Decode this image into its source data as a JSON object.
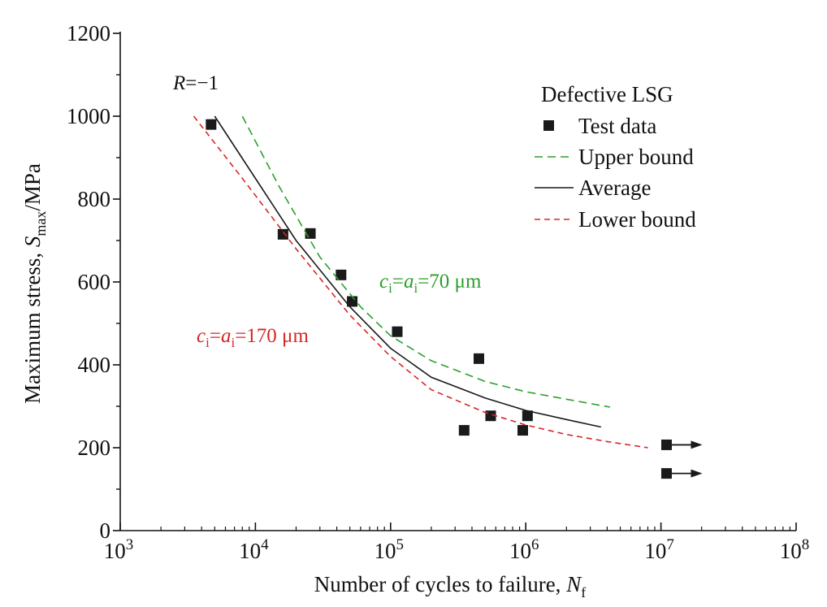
{
  "chart_data": {
    "type": "scatter",
    "xscale": "log",
    "xlim": [
      1000,
      100000000
    ],
    "ylim": [
      0,
      1200
    ],
    "x_ticks": [
      1000,
      10000,
      100000,
      1000000,
      10000000,
      100000000
    ],
    "x_tick_labels": [
      {
        "base": "10",
        "exp": "3"
      },
      {
        "base": "10",
        "exp": "4"
      },
      {
        "base": "10",
        "exp": "5"
      },
      {
        "base": "10",
        "exp": "6"
      },
      {
        "base": "10",
        "exp": "7"
      },
      {
        "base": "10",
        "exp": "8"
      }
    ],
    "y_ticks": [
      0,
      200,
      400,
      600,
      800,
      1000,
      1200
    ],
    "y_tick_labels": [
      "0",
      "200",
      "400",
      "600",
      "800",
      "1000",
      "1200"
    ],
    "xlabel": {
      "text": "Number of cycles to failure, ",
      "var": "N",
      "sub": "f"
    },
    "ylabel": {
      "prefix": "Maximum stress, ",
      "var": "S",
      "sub": "max",
      "suffix": "/MPa"
    },
    "annotations": {
      "ratio": {
        "var": "R",
        "text": "=−1"
      },
      "upper": {
        "c": "c",
        "ci": "i",
        "eq1": "=",
        "a": "a",
        "ai": "i",
        "eq2": "=70 μm",
        "color": "#2ca02c"
      },
      "lower": {
        "c": "c",
        "ci": "i",
        "eq1": "=",
        "a": "a",
        "ai": "i",
        "eq2": "=170 μm",
        "color": "#d62728"
      }
    },
    "legend": {
      "title": "Defective LSG",
      "position": "top-right",
      "entries": [
        "Test data",
        "Upper bound",
        "Average",
        "Lower bound"
      ]
    },
    "series": [
      {
        "name": "Test data",
        "kind": "scatter",
        "color": "#1a1a1a",
        "points": [
          [
            4700,
            980
          ],
          [
            16000,
            715
          ],
          [
            25500,
            717
          ],
          [
            43000,
            617
          ],
          [
            52000,
            553
          ],
          [
            112000,
            480
          ],
          [
            350000,
            242
          ],
          [
            450000,
            415
          ],
          [
            550000,
            277
          ],
          [
            950000,
            242
          ],
          [
            1030000,
            277
          ]
        ]
      },
      {
        "name": "Test data (runout)",
        "kind": "runout",
        "color": "#1a1a1a",
        "points": [
          [
            11000000,
            207
          ],
          [
            11000000,
            138
          ]
        ]
      },
      {
        "name": "Upper bound",
        "kind": "line",
        "style": "dashed",
        "color": "#2ca02c",
        "points": [
          [
            8000,
            1000
          ],
          [
            15000,
            830
          ],
          [
            30000,
            660
          ],
          [
            60000,
            540
          ],
          [
            100000,
            470
          ],
          [
            200000,
            410
          ],
          [
            500000,
            360
          ],
          [
            1000000,
            335
          ],
          [
            2000000,
            317
          ],
          [
            4200000,
            298
          ]
        ]
      },
      {
        "name": "Average",
        "kind": "line",
        "style": "solid",
        "color": "#1a1a1a",
        "points": [
          [
            5000,
            1000
          ],
          [
            10000,
            850
          ],
          [
            20000,
            700
          ],
          [
            50000,
            540
          ],
          [
            100000,
            440
          ],
          [
            200000,
            370
          ],
          [
            500000,
            320
          ],
          [
            1000000,
            290
          ],
          [
            2000000,
            268
          ],
          [
            3600000,
            250
          ]
        ]
      },
      {
        "name": "Lower bound",
        "kind": "line",
        "style": "dotted",
        "color": "#d62728",
        "points": [
          [
            3500,
            1000
          ],
          [
            8000,
            850
          ],
          [
            20000,
            680
          ],
          [
            50000,
            520
          ],
          [
            100000,
            420
          ],
          [
            200000,
            340
          ],
          [
            500000,
            285
          ],
          [
            1000000,
            255
          ],
          [
            2000000,
            232
          ],
          [
            4000000,
            215
          ],
          [
            8000000,
            200
          ]
        ]
      }
    ]
  }
}
